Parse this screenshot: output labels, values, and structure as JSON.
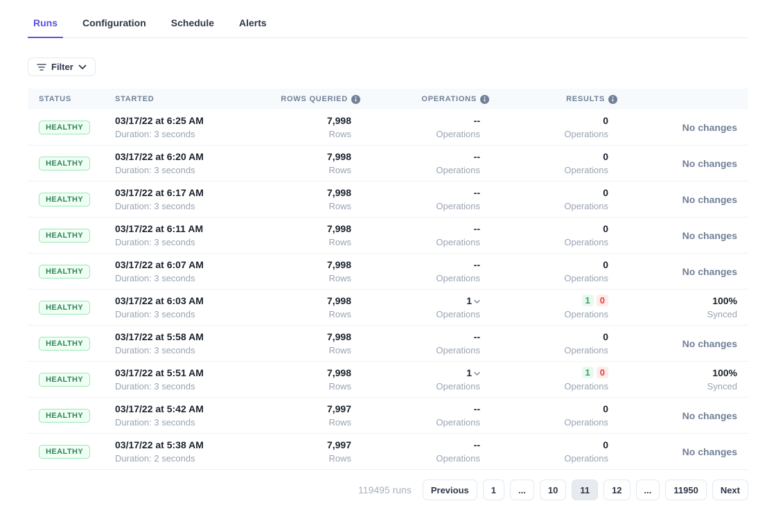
{
  "colors": {
    "accent": "#5a51e0",
    "healthy_text": "#2f855a",
    "healthy_bg": "#f0fff4",
    "healthy_border": "#9ae6b4",
    "success_text": "#38a169",
    "failed_text": "#e53e3e"
  },
  "tabs": [
    {
      "label": "Runs",
      "active": true
    },
    {
      "label": "Configuration",
      "active": false
    },
    {
      "label": "Schedule",
      "active": false
    },
    {
      "label": "Alerts",
      "active": false
    }
  ],
  "filter_button": {
    "label": "Filter"
  },
  "table": {
    "headers": {
      "status": "STATUS",
      "started": "STARTED",
      "rows_queried": "ROWS QUERIED",
      "operations": "OPERATIONS",
      "results": "RESULTS"
    },
    "units": {
      "rows": "Rows",
      "operations": "Operations"
    },
    "rows": [
      {
        "status": "HEALTHY",
        "started": "03/17/22 at 6:25 AM",
        "duration": "Duration: 3 seconds",
        "rows_queried": "7,998",
        "operations": "--",
        "operations_expandable": false,
        "results_plain": "0",
        "results_ok": null,
        "results_fail": null,
        "outcome": "No changes",
        "outcome_sub": null
      },
      {
        "status": "HEALTHY",
        "started": "03/17/22 at 6:20 AM",
        "duration": "Duration: 3 seconds",
        "rows_queried": "7,998",
        "operations": "--",
        "operations_expandable": false,
        "results_plain": "0",
        "results_ok": null,
        "results_fail": null,
        "outcome": "No changes",
        "outcome_sub": null
      },
      {
        "status": "HEALTHY",
        "started": "03/17/22 at 6:17 AM",
        "duration": "Duration: 3 seconds",
        "rows_queried": "7,998",
        "operations": "--",
        "operations_expandable": false,
        "results_plain": "0",
        "results_ok": null,
        "results_fail": null,
        "outcome": "No changes",
        "outcome_sub": null
      },
      {
        "status": "HEALTHY",
        "started": "03/17/22 at 6:11 AM",
        "duration": "Duration: 3 seconds",
        "rows_queried": "7,998",
        "operations": "--",
        "operations_expandable": false,
        "results_plain": "0",
        "results_ok": null,
        "results_fail": null,
        "outcome": "No changes",
        "outcome_sub": null
      },
      {
        "status": "HEALTHY",
        "started": "03/17/22 at 6:07 AM",
        "duration": "Duration: 3 seconds",
        "rows_queried": "7,998",
        "operations": "--",
        "operations_expandable": false,
        "results_plain": "0",
        "results_ok": null,
        "results_fail": null,
        "outcome": "No changes",
        "outcome_sub": null
      },
      {
        "status": "HEALTHY",
        "started": "03/17/22 at 6:03 AM",
        "duration": "Duration: 3 seconds",
        "rows_queried": "7,998",
        "operations": "1",
        "operations_expandable": true,
        "results_plain": null,
        "results_ok": "1",
        "results_fail": "0",
        "outcome": "100%",
        "outcome_sub": "Synced"
      },
      {
        "status": "HEALTHY",
        "started": "03/17/22 at 5:58 AM",
        "duration": "Duration: 3 seconds",
        "rows_queried": "7,998",
        "operations": "--",
        "operations_expandable": false,
        "results_plain": "0",
        "results_ok": null,
        "results_fail": null,
        "outcome": "No changes",
        "outcome_sub": null
      },
      {
        "status": "HEALTHY",
        "started": "03/17/22 at 5:51 AM",
        "duration": "Duration: 3 seconds",
        "rows_queried": "7,998",
        "operations": "1",
        "operations_expandable": true,
        "results_plain": null,
        "results_ok": "1",
        "results_fail": "0",
        "outcome": "100%",
        "outcome_sub": "Synced"
      },
      {
        "status": "HEALTHY",
        "started": "03/17/22 at 5:42 AM",
        "duration": "Duration: 3 seconds",
        "rows_queried": "7,997",
        "operations": "--",
        "operations_expandable": false,
        "results_plain": "0",
        "results_ok": null,
        "results_fail": null,
        "outcome": "No changes",
        "outcome_sub": null
      },
      {
        "status": "HEALTHY",
        "started": "03/17/22 at 5:38 AM",
        "duration": "Duration: 2 seconds",
        "rows_queried": "7,997",
        "operations": "--",
        "operations_expandable": false,
        "results_plain": "0",
        "results_ok": null,
        "results_fail": null,
        "outcome": "No changes",
        "outcome_sub": null
      }
    ]
  },
  "pagination": {
    "runs_total": "119495 runs",
    "previous_label": "Previous",
    "next_label": "Next",
    "pages": [
      {
        "label": "1",
        "active": false
      },
      {
        "label": "...",
        "active": false
      },
      {
        "label": "10",
        "active": false
      },
      {
        "label": "11",
        "active": true
      },
      {
        "label": "12",
        "active": false
      },
      {
        "label": "...",
        "active": false
      },
      {
        "label": "11950",
        "active": false
      }
    ]
  }
}
